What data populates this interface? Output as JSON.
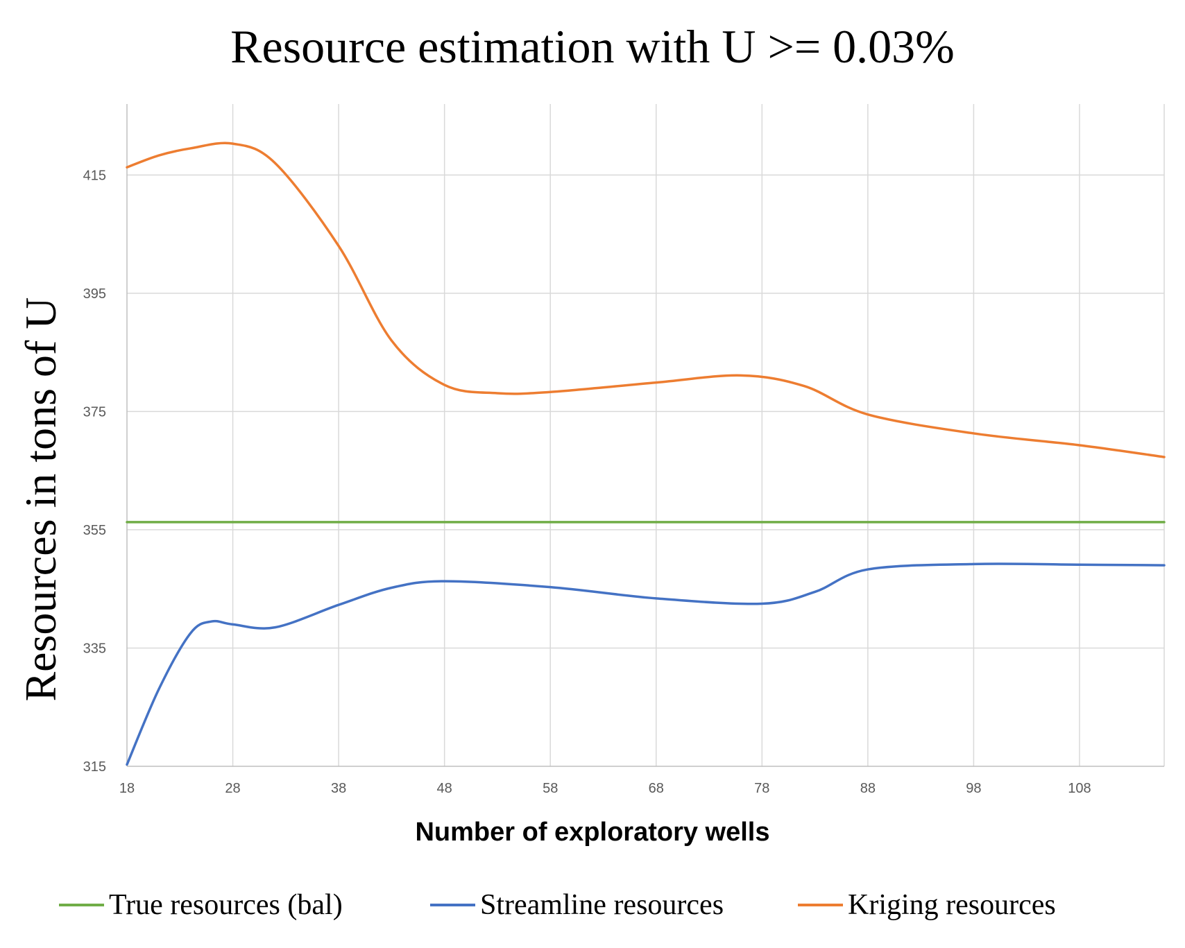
{
  "chart_data": {
    "type": "line",
    "title": "Resource estimation with U >= 0.03%",
    "xlabel": "Number of exploratory wells",
    "ylabel": "Resources in tons of U",
    "xlim": [
      18,
      116
    ],
    "ylim": [
      315,
      427
    ],
    "x_ticks": [
      18,
      28,
      38,
      48,
      58,
      68,
      78,
      88,
      98,
      108
    ],
    "y_ticks": [
      315,
      335,
      355,
      375,
      395,
      415
    ],
    "grid": true,
    "legend_position": "bottom",
    "series": [
      {
        "name": "True resources (bal)",
        "color": "#70ad47",
        "x": [
          18,
          116
        ],
        "y": [
          356.3,
          356.3
        ]
      },
      {
        "name": "Streamline resources",
        "color": "#4472c4",
        "x": [
          18,
          21,
          24,
          26,
          28,
          32,
          38,
          43,
          48,
          58,
          68,
          78,
          83,
          88,
          98,
          108,
          116
        ],
        "y": [
          315.3,
          328,
          337.5,
          339.5,
          339,
          338.5,
          342.3,
          345.2,
          346.3,
          345.3,
          343.4,
          342.5,
          344.5,
          348.3,
          349.2,
          349.1,
          349
        ]
      },
      {
        "name": "Kriging resources",
        "color": "#ed7d31",
        "x": [
          18,
          21,
          24,
          28,
          32,
          38,
          43,
          48,
          53,
          58,
          68,
          76,
          82,
          88,
          98,
          108,
          116
        ],
        "y": [
          416.3,
          418.3,
          419.5,
          420.3,
          417,
          403,
          387,
          379.5,
          378.1,
          378.3,
          379.9,
          381.1,
          379.3,
          374.5,
          371.3,
          369.3,
          367.3
        ]
      }
    ]
  }
}
